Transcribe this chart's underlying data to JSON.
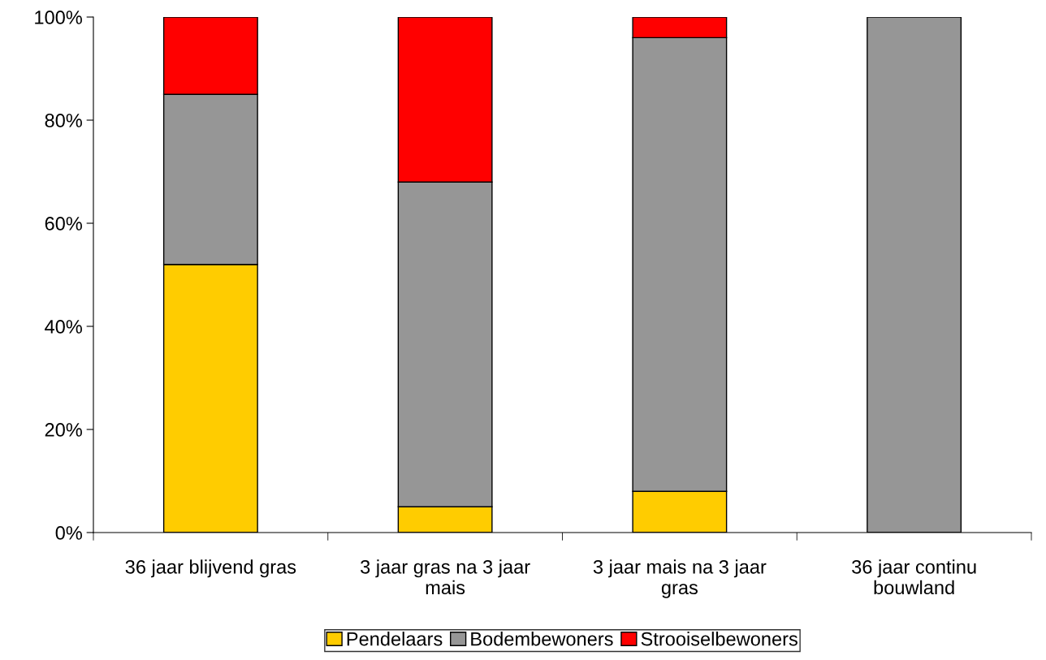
{
  "chart_data": {
    "type": "bar",
    "stacked": true,
    "categories": [
      "36 jaar blijvend gras",
      "3 jaar gras na 3 jaar\nmais",
      "3 jaar mais na 3 jaar\ngras",
      "36 jaar continu\nbouwland"
    ],
    "series": [
      {
        "name": "Pendelaars",
        "color": "#ffcc00",
        "values": [
          52,
          5,
          8,
          0
        ]
      },
      {
        "name": "Bodembewoners",
        "color": "#969696",
        "values": [
          33,
          63,
          88,
          100
        ]
      },
      {
        "name": "Strooiselbewoners",
        "color": "#ff0000",
        "values": [
          15,
          32,
          4,
          0
        ]
      }
    ],
    "ylim": [
      0,
      100
    ],
    "yticks": [
      {
        "value": 0,
        "label": "0%"
      },
      {
        "value": 20,
        "label": "20%"
      },
      {
        "value": 40,
        "label": "40%"
      },
      {
        "value": 60,
        "label": "60%"
      },
      {
        "value": 80,
        "label": "80%"
      },
      {
        "value": 100,
        "label": "100%"
      }
    ],
    "grid": false,
    "legend": "bottom"
  }
}
